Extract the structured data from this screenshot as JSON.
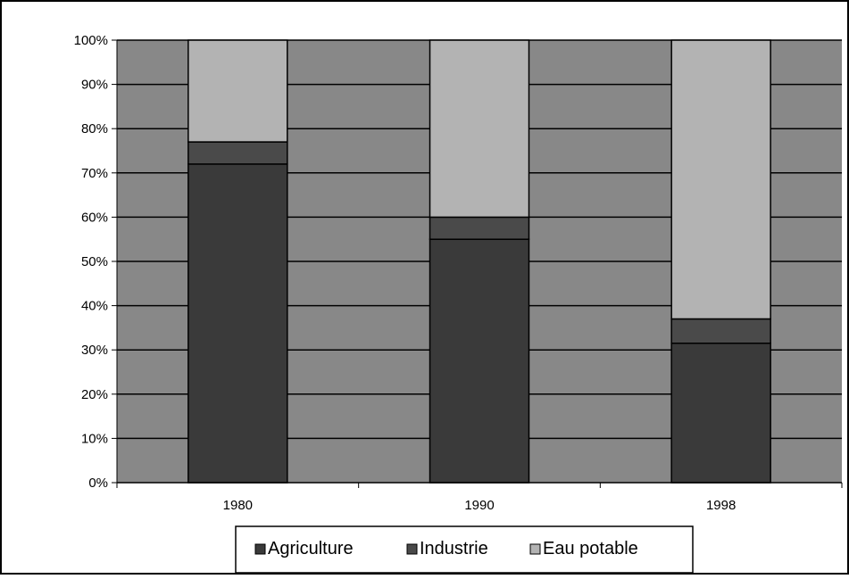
{
  "chart_data": {
    "type": "bar",
    "stacked": true,
    "categories": [
      "1980",
      "1990",
      "1998"
    ],
    "series": [
      {
        "name": "Agriculture",
        "values": [
          72,
          55,
          31.5
        ]
      },
      {
        "name": "Industrie",
        "values": [
          5,
          5,
          5.5
        ]
      },
      {
        "name": "Eau potable",
        "values": [
          23,
          40,
          63
        ]
      }
    ],
    "ylim": [
      0,
      100
    ],
    "y_ticks": [
      "0%",
      "10%",
      "20%",
      "30%",
      "40%",
      "50%",
      "60%",
      "70%",
      "80%",
      "90%",
      "100%"
    ],
    "grid": true,
    "legend_position": "bottom",
    "colors": {
      "plot_background": "#888888",
      "Agriculture": "#3a3a3a",
      "Industrie": "#4a4a4a",
      "Eau potable": "#b3b3b3",
      "gridline": "#000000"
    }
  }
}
